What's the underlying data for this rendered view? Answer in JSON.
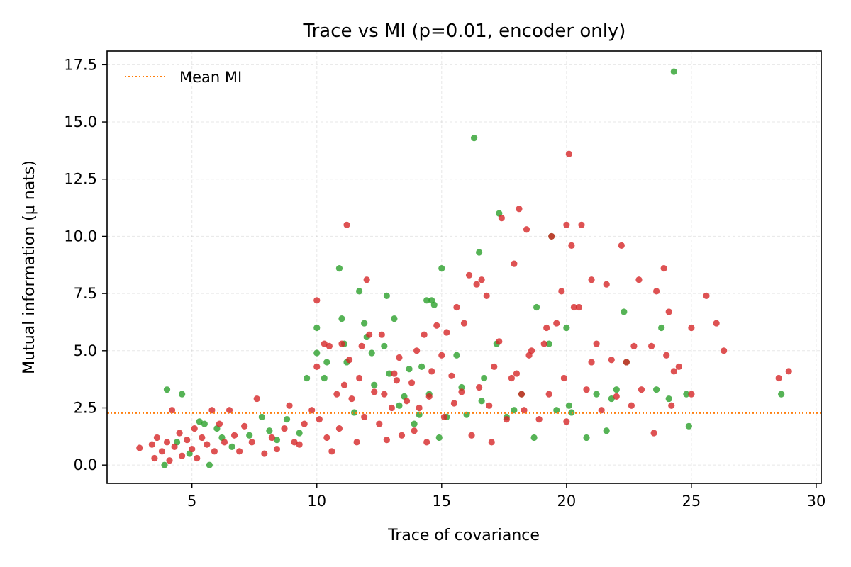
{
  "chart_data": {
    "type": "scatter",
    "title": "Trace vs MI (p=0.01, encoder only)",
    "xlabel": "Trace of covariance",
    "ylabel": "Mutual information (μ nats)",
    "xlim": [
      1.6,
      30.2
    ],
    "ylim": [
      -0.8,
      18.1
    ],
    "xticks": [
      5,
      10,
      15,
      20,
      25,
      30
    ],
    "yticks": [
      0.0,
      2.5,
      5.0,
      7.5,
      10.0,
      12.5,
      15.0,
      17.5
    ],
    "xtick_labels": [
      "5",
      "10",
      "15",
      "20",
      "25",
      "30"
    ],
    "ytick_labels": [
      "0.0",
      "2.5",
      "5.0",
      "7.5",
      "10.0",
      "12.5",
      "15.0",
      "17.5"
    ],
    "grid": true,
    "legend": {
      "position": "top-left",
      "entries": [
        "Mean MI"
      ]
    },
    "reference_lines": [
      {
        "name": "Mean MI",
        "orientation": "horizontal",
        "y": 2.27,
        "style": "dotted",
        "color": "#ff7f0e"
      }
    ],
    "colors": {
      "green": "#2ca02c",
      "red": "#d62728",
      "mean_line": "#ff7f0e"
    },
    "series": [
      {
        "color": "#2ca02c",
        "points": [
          [
            4.0,
            3.3
          ],
          [
            4.6,
            3.1
          ],
          [
            3.9,
            0.0
          ],
          [
            5.7,
            0.0
          ],
          [
            4.4,
            1.0
          ],
          [
            5.3,
            1.9
          ],
          [
            5.5,
            1.8
          ],
          [
            6.2,
            1.2
          ],
          [
            4.9,
            0.5
          ],
          [
            6.0,
            1.6
          ],
          [
            6.6,
            0.8
          ],
          [
            7.3,
            1.3
          ],
          [
            7.8,
            2.1
          ],
          [
            8.1,
            1.5
          ],
          [
            8.4,
            1.1
          ],
          [
            8.8,
            2.0
          ],
          [
            9.3,
            1.4
          ],
          [
            9.6,
            3.8
          ],
          [
            10.0,
            6.0
          ],
          [
            10.0,
            4.9
          ],
          [
            10.3,
            3.8
          ],
          [
            10.4,
            4.5
          ],
          [
            10.9,
            8.6
          ],
          [
            11.0,
            6.4
          ],
          [
            11.1,
            5.3
          ],
          [
            11.2,
            4.5
          ],
          [
            11.5,
            2.3
          ],
          [
            11.7,
            7.6
          ],
          [
            11.9,
            6.2
          ],
          [
            12.0,
            5.6
          ],
          [
            12.2,
            4.9
          ],
          [
            12.3,
            3.5
          ],
          [
            12.7,
            5.2
          ],
          [
            12.8,
            7.4
          ],
          [
            12.9,
            4.0
          ],
          [
            13.1,
            6.4
          ],
          [
            13.3,
            2.6
          ],
          [
            13.5,
            3.0
          ],
          [
            13.7,
            4.2
          ],
          [
            13.9,
            1.8
          ],
          [
            14.1,
            2.2
          ],
          [
            14.2,
            4.3
          ],
          [
            14.4,
            7.2
          ],
          [
            14.5,
            3.1
          ],
          [
            14.6,
            7.2
          ],
          [
            14.7,
            7.0
          ],
          [
            15.0,
            8.6
          ],
          [
            14.9,
            1.2
          ],
          [
            15.2,
            2.1
          ],
          [
            15.6,
            4.8
          ],
          [
            15.8,
            3.4
          ],
          [
            16.0,
            2.2
          ],
          [
            16.3,
            14.3
          ],
          [
            16.5,
            9.3
          ],
          [
            16.6,
            2.8
          ],
          [
            16.7,
            3.8
          ],
          [
            17.2,
            5.3
          ],
          [
            17.3,
            11.0
          ],
          [
            17.6,
            2.1
          ],
          [
            17.9,
            2.4
          ],
          [
            18.2,
            3.1
          ],
          [
            18.7,
            1.2
          ],
          [
            18.8,
            6.9
          ],
          [
            19.4,
            10.0
          ],
          [
            19.3,
            5.3
          ],
          [
            19.6,
            2.4
          ],
          [
            20.0,
            6.0
          ],
          [
            20.1,
            2.6
          ],
          [
            20.2,
            2.3
          ],
          [
            20.8,
            1.2
          ],
          [
            21.2,
            3.1
          ],
          [
            21.6,
            1.5
          ],
          [
            21.8,
            2.9
          ],
          [
            22.0,
            3.3
          ],
          [
            22.3,
            6.7
          ],
          [
            22.4,
            4.5
          ],
          [
            23.6,
            3.3
          ],
          [
            23.8,
            6.0
          ],
          [
            24.1,
            2.9
          ],
          [
            24.3,
            17.2
          ],
          [
            24.8,
            3.1
          ],
          [
            24.9,
            1.7
          ],
          [
            28.6,
            3.1
          ]
        ]
      },
      {
        "color": "#d62728",
        "points": [
          [
            2.9,
            0.75
          ],
          [
            3.4,
            0.9
          ],
          [
            3.5,
            0.3
          ],
          [
            3.6,
            1.2
          ],
          [
            3.8,
            0.6
          ],
          [
            4.0,
            1.0
          ],
          [
            4.1,
            0.2
          ],
          [
            4.2,
            2.4
          ],
          [
            4.3,
            0.8
          ],
          [
            4.5,
            1.4
          ],
          [
            4.6,
            0.4
          ],
          [
            4.8,
            1.1
          ],
          [
            5.0,
            0.7
          ],
          [
            5.1,
            1.6
          ],
          [
            5.2,
            0.3
          ],
          [
            5.4,
            1.2
          ],
          [
            5.6,
            0.9
          ],
          [
            5.8,
            2.4
          ],
          [
            5.9,
            0.6
          ],
          [
            6.1,
            1.8
          ],
          [
            6.3,
            1.0
          ],
          [
            6.5,
            2.4
          ],
          [
            6.7,
            1.3
          ],
          [
            6.9,
            0.6
          ],
          [
            7.1,
            1.7
          ],
          [
            7.4,
            1.0
          ],
          [
            7.6,
            2.9
          ],
          [
            7.9,
            0.5
          ],
          [
            8.2,
            1.2
          ],
          [
            8.4,
            0.7
          ],
          [
            8.7,
            1.6
          ],
          [
            8.9,
            2.6
          ],
          [
            9.1,
            1.0
          ],
          [
            9.3,
            0.9
          ],
          [
            9.5,
            1.8
          ],
          [
            9.8,
            2.4
          ],
          [
            10.0,
            7.2
          ],
          [
            10.0,
            4.3
          ],
          [
            10.1,
            2.0
          ],
          [
            10.3,
            5.3
          ],
          [
            10.4,
            1.2
          ],
          [
            10.5,
            5.2
          ],
          [
            10.6,
            0.6
          ],
          [
            10.8,
            3.1
          ],
          [
            10.9,
            1.6
          ],
          [
            11.0,
            5.3
          ],
          [
            11.1,
            3.5
          ],
          [
            11.2,
            10.5
          ],
          [
            11.3,
            4.6
          ],
          [
            11.4,
            2.9
          ],
          [
            11.6,
            1.0
          ],
          [
            11.7,
            3.8
          ],
          [
            11.8,
            5.2
          ],
          [
            11.9,
            2.1
          ],
          [
            12.0,
            8.1
          ],
          [
            12.1,
            5.7
          ],
          [
            12.3,
            3.2
          ],
          [
            12.5,
            1.8
          ],
          [
            12.6,
            5.7
          ],
          [
            12.7,
            3.1
          ],
          [
            12.8,
            1.1
          ],
          [
            13.0,
            2.5
          ],
          [
            13.1,
            4.0
          ],
          [
            13.2,
            3.7
          ],
          [
            13.3,
            4.7
          ],
          [
            13.4,
            1.3
          ],
          [
            13.6,
            2.8
          ],
          [
            13.8,
            3.6
          ],
          [
            13.9,
            1.5
          ],
          [
            14.0,
            5.0
          ],
          [
            14.1,
            2.5
          ],
          [
            14.3,
            5.7
          ],
          [
            14.4,
            1.0
          ],
          [
            14.5,
            3.0
          ],
          [
            14.6,
            4.1
          ],
          [
            14.8,
            6.1
          ],
          [
            15.0,
            4.8
          ],
          [
            15.1,
            2.1
          ],
          [
            15.2,
            5.8
          ],
          [
            15.4,
            3.9
          ],
          [
            15.5,
            2.7
          ],
          [
            15.6,
            6.9
          ],
          [
            15.8,
            3.2
          ],
          [
            15.9,
            6.2
          ],
          [
            16.1,
            8.3
          ],
          [
            16.2,
            1.3
          ],
          [
            16.4,
            7.9
          ],
          [
            16.5,
            3.4
          ],
          [
            16.6,
            8.1
          ],
          [
            16.8,
            7.4
          ],
          [
            16.9,
            2.6
          ],
          [
            17.0,
            1.0
          ],
          [
            17.1,
            4.3
          ],
          [
            17.3,
            5.4
          ],
          [
            17.4,
            10.8
          ],
          [
            17.6,
            2.0
          ],
          [
            17.8,
            3.8
          ],
          [
            17.9,
            8.8
          ],
          [
            18.0,
            4.0
          ],
          [
            18.1,
            11.2
          ],
          [
            18.2,
            3.1
          ],
          [
            18.3,
            2.4
          ],
          [
            18.4,
            10.3
          ],
          [
            18.5,
            4.8
          ],
          [
            18.6,
            5.0
          ],
          [
            18.9,
            2.0
          ],
          [
            19.1,
            5.3
          ],
          [
            19.2,
            6.0
          ],
          [
            19.3,
            3.1
          ],
          [
            19.4,
            10.0
          ],
          [
            19.6,
            6.2
          ],
          [
            19.8,
            7.6
          ],
          [
            19.9,
            3.8
          ],
          [
            20.0,
            1.9
          ],
          [
            20.0,
            10.5
          ],
          [
            20.1,
            13.6
          ],
          [
            20.2,
            9.6
          ],
          [
            20.3,
            6.9
          ],
          [
            20.5,
            6.9
          ],
          [
            20.6,
            10.5
          ],
          [
            20.8,
            3.3
          ],
          [
            21.0,
            8.1
          ],
          [
            21.0,
            4.5
          ],
          [
            21.2,
            5.3
          ],
          [
            21.4,
            2.4
          ],
          [
            21.6,
            7.9
          ],
          [
            21.8,
            4.6
          ],
          [
            22.0,
            3.0
          ],
          [
            22.2,
            9.6
          ],
          [
            22.4,
            4.5
          ],
          [
            22.6,
            2.6
          ],
          [
            22.7,
            5.2
          ],
          [
            22.9,
            8.1
          ],
          [
            23.0,
            3.3
          ],
          [
            23.4,
            5.2
          ],
          [
            23.5,
            1.4
          ],
          [
            23.6,
            7.6
          ],
          [
            23.9,
            8.6
          ],
          [
            24.0,
            4.8
          ],
          [
            24.1,
            6.7
          ],
          [
            24.2,
            2.6
          ],
          [
            24.3,
            4.1
          ],
          [
            24.5,
            4.3
          ],
          [
            25.0,
            3.1
          ],
          [
            25.0,
            6.0
          ],
          [
            25.6,
            7.4
          ],
          [
            26.0,
            6.2
          ],
          [
            26.3,
            5.0
          ],
          [
            28.5,
            3.8
          ],
          [
            28.9,
            4.1
          ]
        ]
      }
    ]
  }
}
